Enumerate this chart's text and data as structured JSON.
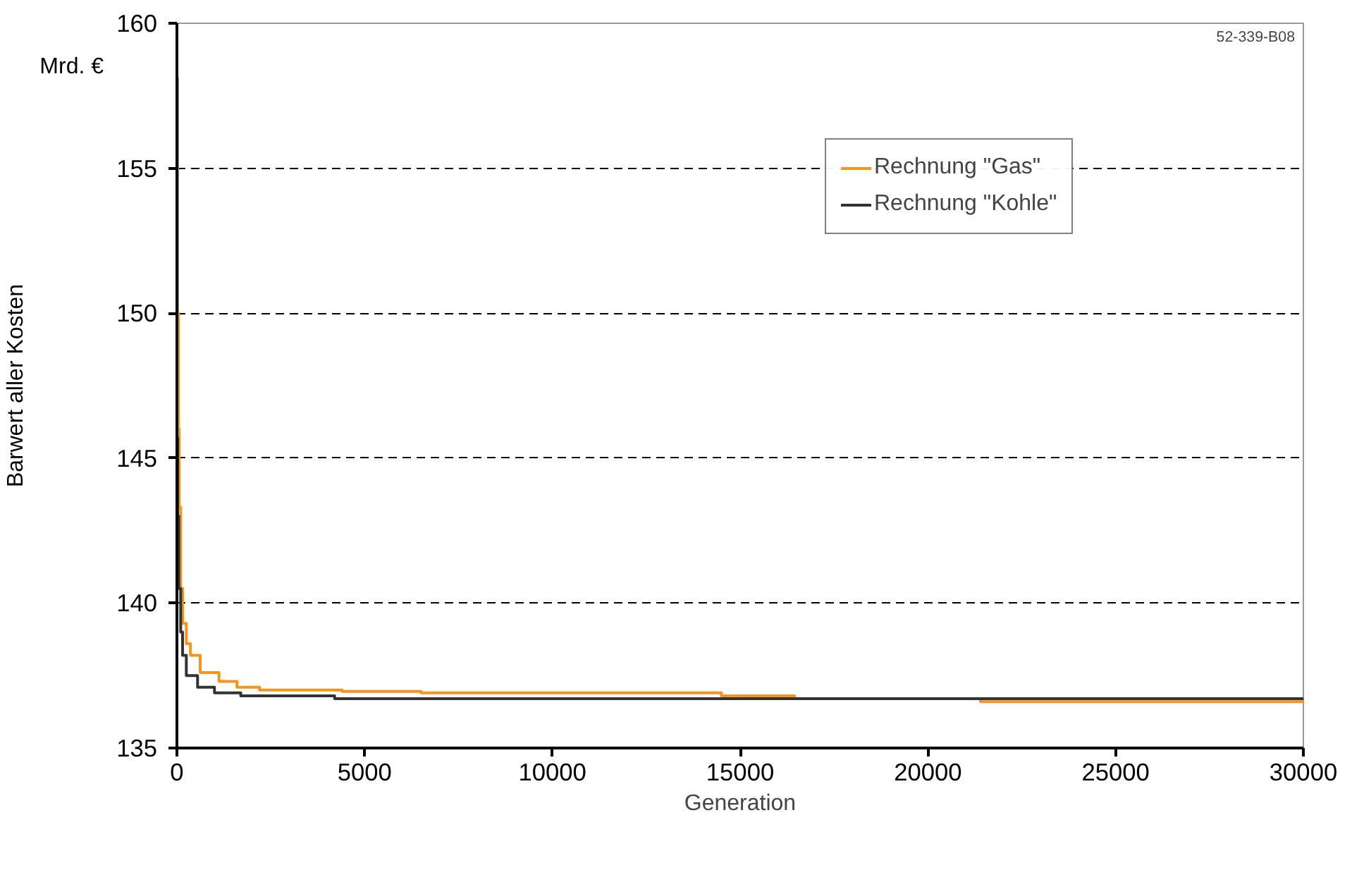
{
  "chart_data": {
    "type": "step",
    "xlabel": "Generation",
    "ylabel": "Barwert aller Kosten",
    "annotations": [
      "Mrd. €",
      "52-339-B08"
    ],
    "series": [
      {
        "name": "Rechnung \"Gas\"",
        "color": "#f7941d",
        "x": [
          0,
          20,
          40,
          60,
          100,
          150,
          250,
          360,
          620,
          1120,
          1600,
          2200,
          4400,
          6500,
          14500,
          16450,
          21400,
          30000
        ],
        "values": [
          158.1,
          150,
          146,
          143.3,
          140.5,
          139.3,
          138.6,
          138.2,
          137.6,
          137.3,
          137.1,
          137.0,
          136.95,
          136.9,
          136.8,
          136.7,
          136.6,
          136.6
        ]
      },
      {
        "name": "Rechnung \"Kohle\"",
        "color": "#333333",
        "x": [
          0,
          20,
          50,
          100,
          150,
          250,
          550,
          1000,
          1700,
          4200,
          30000
        ],
        "values": [
          145.7,
          143,
          140.5,
          139,
          138.2,
          137.5,
          137.1,
          136.9,
          136.8,
          136.7,
          136.7
        ]
      }
    ],
    "xlim": [
      0,
      30000
    ],
    "xticks": [
      0,
      5000,
      10000,
      15000,
      20000,
      25000,
      30000
    ],
    "ylim": [
      135,
      160
    ],
    "yticks": [
      135,
      140,
      145,
      150,
      155,
      160
    ],
    "grid": "y",
    "legend": "top right",
    "line_style": "solid"
  }
}
